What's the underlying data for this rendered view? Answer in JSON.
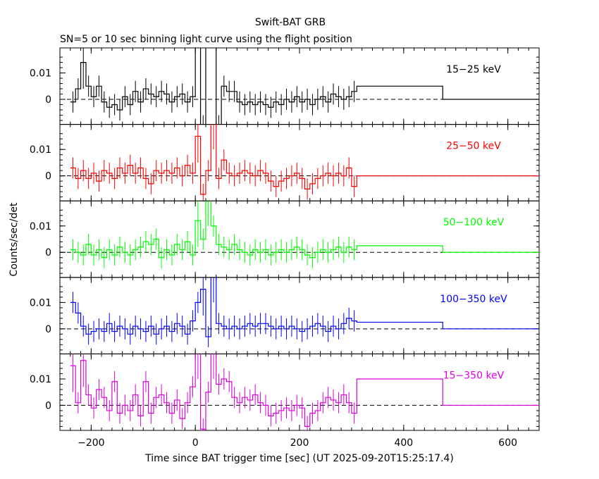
{
  "title": "Swift-BAT GRB",
  "subtitle": "SN=5 or 10 sec binning light curve using the flight position",
  "ylabel": "Counts/sec/det",
  "xlabel": "Time since BAT trigger time [sec] (UT 2025-09-20T15:25:17.4)",
  "chart_data": {
    "type": "line",
    "title": "Swift-BAT GRB",
    "subtitle": "SN=5 or 10 sec binning light curve using the flight position",
    "xlabel": "Time since BAT trigger time [sec] (UT 2025-09-20T15:25:17.4)",
    "ylabel": "Counts/sec/det",
    "xlim": [
      -260,
      660
    ],
    "ylim": [
      -0.0095,
      0.0195
    ],
    "x_ticks": [
      -200,
      0,
      200,
      400,
      600
    ],
    "x_tick_labels": [
      "−200",
      "0",
      "200",
      "400",
      "600"
    ],
    "y_ticks": [
      0,
      0.01
    ],
    "y_tick_labels": [
      "0",
      "0.01"
    ],
    "panels": [
      {
        "name": "15−25 keV",
        "color": "#000000",
        "points": [
          [
            -240,
            -0.001
          ],
          [
            -230,
            0.004
          ],
          [
            -220,
            0.014
          ],
          [
            -210,
            0.005
          ],
          [
            -200,
            0.001
          ],
          [
            -190,
            0.005
          ],
          [
            -180,
            -0.001
          ],
          [
            -170,
            -0.003
          ],
          [
            -160,
            -0.002
          ],
          [
            -150,
            -0.004
          ],
          [
            -140,
            0.001
          ],
          [
            -130,
            -0.002
          ],
          [
            -120,
            0.003
          ],
          [
            -110,
            -0.001
          ],
          [
            -100,
            0.004
          ],
          [
            -90,
            0.002
          ],
          [
            -80,
            0.001
          ],
          [
            -70,
            0.003
          ],
          [
            -60,
            0.002
          ],
          [
            -50,
            -0.001
          ],
          [
            -40,
            0.001
          ],
          [
            -30,
            0.002
          ],
          [
            -20,
            -0.001
          ],
          [
            -10,
            0.001
          ],
          [
            0,
            0.03
          ],
          [
            10,
            -0.01
          ],
          [
            20,
            0.03
          ],
          [
            30,
            0.03
          ],
          [
            40,
            -0.01
          ],
          [
            50,
            0.005
          ],
          [
            60,
            0.003
          ],
          [
            70,
            0.003
          ],
          [
            80,
            -0.001
          ],
          [
            90,
            -0.002
          ],
          [
            100,
            -0.001
          ],
          [
            110,
            -0.002
          ],
          [
            120,
            -0.001
          ],
          [
            130,
            -0.002
          ],
          [
            140,
            -0.003
          ],
          [
            150,
            -0.001
          ],
          [
            160,
            -0.002
          ],
          [
            170,
            0.0
          ],
          [
            180,
            -0.001
          ],
          [
            190,
            0.001
          ],
          [
            200,
            -0.001
          ],
          [
            210,
            0.0
          ],
          [
            220,
            -0.002
          ],
          [
            230,
            0.0
          ],
          [
            240,
            0.001
          ],
          [
            250,
            -0.001
          ],
          [
            260,
            0.002
          ],
          [
            270,
            0.001
          ],
          [
            280,
            0.0
          ],
          [
            290,
            0.001
          ],
          [
            300,
            0.003
          ],
          [
            310,
            0.005
          ],
          [
            475,
            0.0
          ],
          [
            660,
            0.0
          ]
        ]
      },
      {
        "name": "25−50 keV",
        "color": "#ff0000",
        "points": [
          [
            -240,
            0.003
          ],
          [
            -230,
            -0.001
          ],
          [
            -220,
            0.002
          ],
          [
            -210,
            -0.001
          ],
          [
            -200,
            0.001
          ],
          [
            -190,
            -0.002
          ],
          [
            -180,
            0.002
          ],
          [
            -170,
            0.001
          ],
          [
            -160,
            -0.001
          ],
          [
            -150,
            0.003
          ],
          [
            -140,
            0.001
          ],
          [
            -130,
            0.004
          ],
          [
            -120,
            0.001
          ],
          [
            -110,
            0.003
          ],
          [
            -100,
            -0.001
          ],
          [
            -90,
            -0.003
          ],
          [
            -80,
            0.002
          ],
          [
            -70,
            0.001
          ],
          [
            -60,
            0.002
          ],
          [
            -50,
            0.001
          ],
          [
            -40,
            0.003
          ],
          [
            -30,
            0.0
          ],
          [
            -20,
            0.004
          ],
          [
            -10,
            0.001
          ],
          [
            0,
            0.015
          ],
          [
            10,
            -0.007
          ],
          [
            20,
            0.002
          ],
          [
            30,
            0.02
          ],
          [
            40,
            -0.001
          ],
          [
            50,
            0.006
          ],
          [
            60,
            0.001
          ],
          [
            70,
            0.0
          ],
          [
            80,
            0.001
          ],
          [
            90,
            0.002
          ],
          [
            100,
            0.001
          ],
          [
            110,
            0.0
          ],
          [
            120,
            0.002
          ],
          [
            130,
            0.001
          ],
          [
            140,
            -0.002
          ],
          [
            150,
            -0.004
          ],
          [
            160,
            -0.002
          ],
          [
            170,
            -0.001
          ],
          [
            180,
            0.0
          ],
          [
            190,
            0.001
          ],
          [
            200,
            -0.001
          ],
          [
            210,
            -0.005
          ],
          [
            220,
            -0.003
          ],
          [
            230,
            -0.001
          ],
          [
            240,
            0.0
          ],
          [
            250,
            0.001
          ],
          [
            260,
            0.0
          ],
          [
            270,
            0.001
          ],
          [
            280,
            0.0
          ],
          [
            290,
            0.003
          ],
          [
            300,
            -0.004
          ],
          [
            310,
            0.0
          ],
          [
            475,
            0.0
          ],
          [
            660,
            -0.0002
          ]
        ]
      },
      {
        "name": "50−100 keV",
        "color": "#00ff00",
        "points": [
          [
            -240,
            0.001
          ],
          [
            -230,
            0.0
          ],
          [
            -220,
            -0.001
          ],
          [
            -210,
            0.003
          ],
          [
            -200,
            -0.001
          ],
          [
            -190,
            0.001
          ],
          [
            -180,
            -0.002
          ],
          [
            -170,
            0.001
          ],
          [
            -160,
            -0.001
          ],
          [
            -150,
            0.002
          ],
          [
            -140,
            0.0
          ],
          [
            -130,
            -0.001
          ],
          [
            -120,
            0.001
          ],
          [
            -110,
            0.002
          ],
          [
            -100,
            0.004
          ],
          [
            -90,
            0.003
          ],
          [
            -80,
            0.005
          ],
          [
            -70,
            -0.002
          ],
          [
            -60,
            0.001
          ],
          [
            -50,
            -0.001
          ],
          [
            -40,
            0.003
          ],
          [
            -30,
            0.001
          ],
          [
            -20,
            0.004
          ],
          [
            -10,
            -0.001
          ],
          [
            0,
            0.012
          ],
          [
            10,
            0.005
          ],
          [
            20,
            0.02
          ],
          [
            30,
            0.01
          ],
          [
            40,
            0.003
          ],
          [
            50,
            0.002
          ],
          [
            60,
            0.001
          ],
          [
            70,
            0.003
          ],
          [
            80,
            0.001
          ],
          [
            90,
            0.0
          ],
          [
            100,
            -0.001
          ],
          [
            110,
            0.001
          ],
          [
            120,
            0.0
          ],
          [
            130,
            0.001
          ],
          [
            140,
            -0.001
          ],
          [
            150,
            0.0
          ],
          [
            160,
            0.001
          ],
          [
            170,
            0.0
          ],
          [
            180,
            0.001
          ],
          [
            190,
            0.002
          ],
          [
            200,
            0.001
          ],
          [
            210,
            -0.001
          ],
          [
            220,
            -0.002
          ],
          [
            230,
            0.0
          ],
          [
            240,
            0.001
          ],
          [
            250,
            0.0
          ],
          [
            260,
            0.001
          ],
          [
            270,
            0.002
          ],
          [
            280,
            0.0
          ],
          [
            290,
            0.002
          ],
          [
            300,
            0.001
          ],
          [
            310,
            0.0025
          ],
          [
            475,
            0.0
          ],
          [
            660,
            0.0
          ]
        ]
      },
      {
        "name": "100−350 keV",
        "color": "#0000ff",
        "points": [
          [
            -240,
            0.01
          ],
          [
            -230,
            0.006
          ],
          [
            -220,
            0.001
          ],
          [
            -210,
            -0.002
          ],
          [
            -200,
            -0.001
          ],
          [
            -190,
            0.0
          ],
          [
            -180,
            -0.001
          ],
          [
            -170,
            0.002
          ],
          [
            -160,
            -0.001
          ],
          [
            -150,
            0.001
          ],
          [
            -140,
            0.0
          ],
          [
            -130,
            -0.002
          ],
          [
            -120,
            0.001
          ],
          [
            -110,
            0.0
          ],
          [
            -100,
            -0.001
          ],
          [
            -90,
            0.001
          ],
          [
            -80,
            -0.002
          ],
          [
            -70,
            0.0
          ],
          [
            -60,
            0.001
          ],
          [
            -50,
            -0.001
          ],
          [
            -40,
            0.002
          ],
          [
            -30,
            0.001
          ],
          [
            -20,
            -0.002
          ],
          [
            -10,
            0.003
          ],
          [
            0,
            0.01
          ],
          [
            10,
            0.015
          ],
          [
            20,
            -0.003
          ],
          [
            30,
            0.02
          ],
          [
            40,
            0.002
          ],
          [
            50,
            0.001
          ],
          [
            60,
            0.0
          ],
          [
            70,
            0.001
          ],
          [
            80,
            0.0
          ],
          [
            90,
            0.001
          ],
          [
            100,
            0.002
          ],
          [
            110,
            0.001
          ],
          [
            120,
            0.002
          ],
          [
            130,
            0.002
          ],
          [
            140,
            0.001
          ],
          [
            150,
            0.0
          ],
          [
            160,
            0.001
          ],
          [
            170,
            0.0
          ],
          [
            180,
            0.001
          ],
          [
            190,
            0.0
          ],
          [
            200,
            -0.001
          ],
          [
            210,
            0.0
          ],
          [
            220,
            0.001
          ],
          [
            230,
            0.002
          ],
          [
            240,
            0.001
          ],
          [
            250,
            -0.001
          ],
          [
            260,
            0.001
          ],
          [
            270,
            0.0
          ],
          [
            280,
            0.002
          ],
          [
            290,
            0.004
          ],
          [
            300,
            0.003
          ],
          [
            310,
            0.0025
          ],
          [
            475,
            0.0
          ],
          [
            660,
            0.0
          ]
        ]
      },
      {
        "name": "15−350 keV",
        "color": "#dd00dd",
        "points": [
          [
            -240,
            0.015
          ],
          [
            -230,
            0.001
          ],
          [
            -220,
            0.017
          ],
          [
            -210,
            0.004
          ],
          [
            -200,
            -0.001
          ],
          [
            -190,
            0.006
          ],
          [
            -180,
            0.003
          ],
          [
            -170,
            -0.002
          ],
          [
            -160,
            0.009
          ],
          [
            -150,
            -0.003
          ],
          [
            -140,
            0.0
          ],
          [
            -130,
            -0.002
          ],
          [
            -120,
            0.004
          ],
          [
            -110,
            -0.004
          ],
          [
            -100,
            0.009
          ],
          [
            -90,
            -0.003
          ],
          [
            -80,
            0.003
          ],
          [
            -70,
            0.004
          ],
          [
            -60,
            0.001
          ],
          [
            -50,
            -0.003
          ],
          [
            -40,
            0.002
          ],
          [
            -30,
            -0.005
          ],
          [
            -20,
            0.001
          ],
          [
            -10,
            0.007
          ],
          [
            0,
            0.02
          ],
          [
            10,
            -0.009
          ],
          [
            20,
            0.005
          ],
          [
            30,
            0.02
          ],
          [
            40,
            0.008
          ],
          [
            50,
            0.01
          ],
          [
            60,
            0.009
          ],
          [
            70,
            0.003
          ],
          [
            80,
            0.001
          ],
          [
            90,
            0.003
          ],
          [
            100,
            0.002
          ],
          [
            110,
            0.004
          ],
          [
            120,
            0.001
          ],
          [
            130,
            0.0
          ],
          [
            140,
            -0.004
          ],
          [
            150,
            -0.003
          ],
          [
            160,
            -0.002
          ],
          [
            170,
            -0.001
          ],
          [
            180,
            -0.002
          ],
          [
            190,
            0.0
          ],
          [
            200,
            -0.001
          ],
          [
            210,
            -0.008
          ],
          [
            220,
            -0.003
          ],
          [
            230,
            -0.002
          ],
          [
            240,
            0.001
          ],
          [
            250,
            0.003
          ],
          [
            260,
            0.002
          ],
          [
            270,
            0.001
          ],
          [
            280,
            0.004
          ],
          [
            290,
            0.001
          ],
          [
            300,
            -0.003
          ],
          [
            310,
            0.01
          ],
          [
            475,
            0.0
          ],
          [
            660,
            0.0
          ]
        ]
      }
    ]
  }
}
